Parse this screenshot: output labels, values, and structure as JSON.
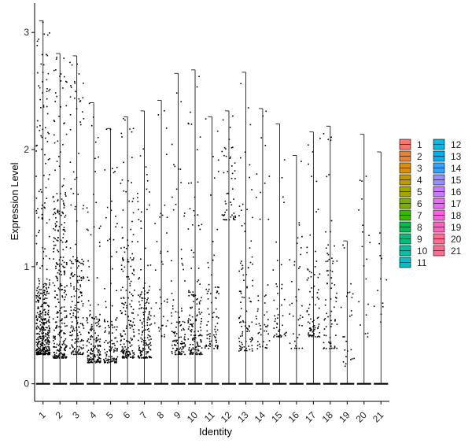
{
  "chart_data": {
    "type": "violin-jitter",
    "xlabel": "Identity",
    "ylabel": "Expression Level",
    "categories": [
      "1",
      "2",
      "3",
      "4",
      "5",
      "6",
      "7",
      "8",
      "9",
      "10",
      "11",
      "12",
      "13",
      "14",
      "15",
      "16",
      "17",
      "18",
      "19",
      "20",
      "21"
    ],
    "ylim": [
      -0.15,
      3.25
    ],
    "yticks": [
      0,
      1,
      2,
      3
    ],
    "max_values": [
      3.1,
      2.82,
      2.8,
      2.4,
      2.18,
      2.28,
      2.33,
      2.42,
      2.65,
      2.68,
      2.28,
      2.33,
      2.66,
      2.35,
      2.22,
      1.95,
      2.15,
      2.2,
      1.22,
      2.13,
      1.98
    ],
    "bulk_low": [
      0.25,
      0.22,
      0.25,
      0.18,
      0.18,
      0.22,
      0.22,
      0.4,
      0.25,
      0.25,
      0.3,
      1.4,
      0.28,
      0.3,
      0.4,
      0.3,
      0.4,
      0.3,
      0.15,
      0.4,
      0.5
    ],
    "bulk_high": [
      0.9,
      1.6,
      1.1,
      0.6,
      0.55,
      1.3,
      0.85,
      1.5,
      0.7,
      0.8,
      0.85,
      2.1,
      1.1,
      0.9,
      1.2,
      1.4,
      1.2,
      1.2,
      0.9,
      1.9,
      1.4
    ],
    "points_per_group": [
      420,
      320,
      200,
      170,
      120,
      190,
      170,
      40,
      110,
      150,
      80,
      50,
      100,
      50,
      45,
      40,
      80,
      75,
      25,
      20,
      12
    ],
    "colors": [
      "#F8766D",
      "#EA8331",
      "#D89000",
      "#C09B00",
      "#A3A500",
      "#7CAE00",
      "#39B600",
      "#00BB4E",
      "#00BF7D",
      "#00C1A3",
      "#00BFC4",
      "#00BAE0",
      "#00B0F6",
      "#35A2FF",
      "#9590FF",
      "#C77CFF",
      "#E76BF3",
      "#FA62DB",
      "#FF62BC",
      "#FF6C91",
      "#FF6C91"
    ],
    "legend": {
      "items": [
        "1",
        "2",
        "3",
        "4",
        "5",
        "6",
        "7",
        "8",
        "9",
        "10",
        "11",
        "12",
        "13",
        "14",
        "15",
        "16",
        "17",
        "18",
        "19",
        "20",
        "21"
      ]
    }
  }
}
